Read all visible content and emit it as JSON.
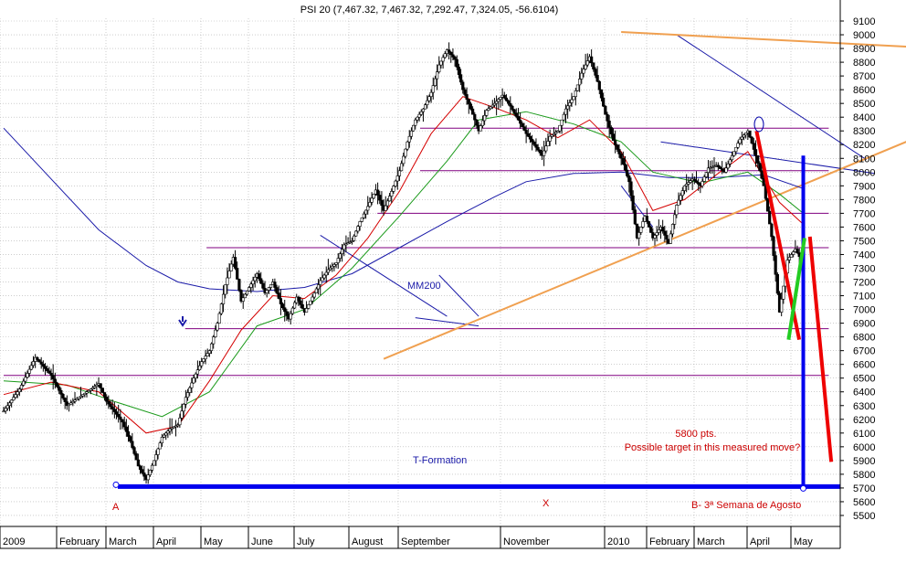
{
  "chart_data": {
    "type": "candlestick",
    "title": "PSI 20 (7,467.32, 7,467.32, 7,292.47, 7,324.05, -56.6104)",
    "ylim": [
      5400,
      9200
    ],
    "y_ticks": [
      5500,
      5600,
      5700,
      5800,
      5900,
      6000,
      6100,
      6200,
      6300,
      6400,
      6500,
      6600,
      6700,
      6800,
      6900,
      7000,
      7100,
      7200,
      7300,
      7400,
      7500,
      7600,
      7700,
      7800,
      7900,
      8000,
      8100,
      8200,
      8300,
      8400,
      8500,
      8600,
      8700,
      8800,
      8900,
      9000,
      9100
    ],
    "x_labels": [
      "2009",
      "February",
      "March",
      "April",
      "May",
      "June",
      "July",
      "August",
      "September",
      "November",
      "2010",
      "February",
      "March",
      "April",
      "May"
    ],
    "grid": true,
    "colors": {
      "candle": "#000000",
      "mm200": "#1a1aa8",
      "ma_red": "#d40000",
      "ma_green": "#1a9a1a",
      "horizontal_level": "#800080",
      "trendline_blue": "#1a1aa8",
      "trendline_orange": "#f0a050",
      "t_formation": "#0000ee",
      "projection_red": "#ee0000",
      "projection_green": "#22cc22",
      "annotation_red": "#cc0000"
    },
    "price_path": [
      [
        0,
        6260
      ],
      [
        2,
        6420
      ],
      [
        4,
        6650
      ],
      [
        6,
        6520
      ],
      [
        8,
        6300
      ],
      [
        10,
        6380
      ],
      [
        12,
        6460
      ],
      [
        13,
        6330
      ],
      [
        15,
        6180
      ],
      [
        16,
        6040
      ],
      [
        17,
        5860
      ],
      [
        18,
        5760
      ],
      [
        19,
        5900
      ],
      [
        20,
        6070
      ],
      [
        21,
        6130
      ],
      [
        22,
        6160
      ],
      [
        23,
        6360
      ],
      [
        24,
        6500
      ],
      [
        25,
        6620
      ],
      [
        26,
        6700
      ],
      [
        27,
        6900
      ],
      [
        28,
        7180
      ],
      [
        29,
        7380
      ],
      [
        30,
        7060
      ],
      [
        31,
        7160
      ],
      [
        32,
        7260
      ],
      [
        33,
        7120
      ],
      [
        34,
        7200
      ],
      [
        35,
        7040
      ],
      [
        36,
        6930
      ],
      [
        37,
        7090
      ],
      [
        38,
        6980
      ],
      [
        39,
        7090
      ],
      [
        40,
        7210
      ],
      [
        41,
        7290
      ],
      [
        42,
        7340
      ],
      [
        43,
        7470
      ],
      [
        44,
        7500
      ],
      [
        45,
        7640
      ],
      [
        46,
        7750
      ],
      [
        47,
        7870
      ],
      [
        48,
        7720
      ],
      [
        49,
        7860
      ],
      [
        50,
        8010
      ],
      [
        51,
        8220
      ],
      [
        52,
        8380
      ],
      [
        53,
        8460
      ],
      [
        54,
        8580
      ],
      [
        55,
        8780
      ],
      [
        56,
        8890
      ],
      [
        57,
        8820
      ],
      [
        58,
        8600
      ],
      [
        59,
        8460
      ],
      [
        60,
        8300
      ],
      [
        61,
        8450
      ],
      [
        62,
        8500
      ],
      [
        63,
        8560
      ],
      [
        64,
        8480
      ],
      [
        65,
        8380
      ],
      [
        66,
        8280
      ],
      [
        67,
        8200
      ],
      [
        68,
        8120
      ],
      [
        69,
        8260
      ],
      [
        70,
        8300
      ],
      [
        71,
        8460
      ],
      [
        72,
        8550
      ],
      [
        73,
        8720
      ],
      [
        74,
        8840
      ],
      [
        75,
        8660
      ],
      [
        76,
        8420
      ],
      [
        77,
        8230
      ],
      [
        78,
        8100
      ],
      [
        79,
        7930
      ],
      [
        80,
        7520
      ],
      [
        81,
        7680
      ],
      [
        82,
        7520
      ],
      [
        83,
        7600
      ],
      [
        84,
        7480
      ],
      [
        85,
        7760
      ],
      [
        86,
        7900
      ],
      [
        87,
        7950
      ],
      [
        88,
        7900
      ],
      [
        89,
        8030
      ],
      [
        90,
        8050
      ],
      [
        91,
        8000
      ],
      [
        92,
        8120
      ],
      [
        93,
        8240
      ],
      [
        94,
        8300
      ],
      [
        95,
        8120
      ],
      [
        96,
        7900
      ],
      [
        97,
        7530
      ],
      [
        98,
        6980
      ],
      [
        99,
        7360
      ],
      [
        100,
        7440
      ],
      [
        101,
        7330
      ]
    ],
    "ma_red_path": [
      [
        0,
        6380
      ],
      [
        6,
        6470
      ],
      [
        12,
        6400
      ],
      [
        18,
        6100
      ],
      [
        22,
        6150
      ],
      [
        26,
        6480
      ],
      [
        30,
        6850
      ],
      [
        34,
        7100
      ],
      [
        38,
        7080
      ],
      [
        42,
        7250
      ],
      [
        46,
        7520
      ],
      [
        50,
        7860
      ],
      [
        54,
        8280
      ],
      [
        58,
        8550
      ],
      [
        62,
        8470
      ],
      [
        66,
        8380
      ],
      [
        70,
        8250
      ],
      [
        74,
        8380
      ],
      [
        78,
        8150
      ],
      [
        82,
        7720
      ],
      [
        86,
        7800
      ],
      [
        90,
        7980
      ],
      [
        94,
        8150
      ],
      [
        98,
        7780
      ],
      [
        101,
        7620
      ]
    ],
    "ma_green_path": [
      [
        0,
        6480
      ],
      [
        8,
        6450
      ],
      [
        14,
        6330
      ],
      [
        20,
        6220
      ],
      [
        26,
        6400
      ],
      [
        32,
        6880
      ],
      [
        38,
        7000
      ],
      [
        44,
        7300
      ],
      [
        50,
        7680
      ],
      [
        56,
        8080
      ],
      [
        60,
        8380
      ],
      [
        66,
        8440
      ],
      [
        72,
        8350
      ],
      [
        78,
        8220
      ],
      [
        82,
        8000
      ],
      [
        88,
        7920
      ],
      [
        94,
        8000
      ],
      [
        98,
        7840
      ],
      [
        101,
        7700
      ]
    ],
    "mm200_path": [
      [
        0,
        8320
      ],
      [
        6,
        7950
      ],
      [
        12,
        7580
      ],
      [
        18,
        7320
      ],
      [
        22,
        7200
      ],
      [
        26,
        7150
      ],
      [
        32,
        7130
      ],
      [
        38,
        7160
      ],
      [
        44,
        7260
      ],
      [
        50,
        7450
      ],
      [
        56,
        7640
      ],
      [
        62,
        7820
      ],
      [
        66,
        7930
      ],
      [
        72,
        7990
      ],
      [
        78,
        8000
      ],
      [
        84,
        7960
      ],
      [
        90,
        7960
      ],
      [
        96,
        7980
      ],
      [
        101,
        7880
      ]
    ],
    "horizontal_levels": [
      {
        "from": 0,
        "to": 101,
        "y": 6520
      },
      {
        "from": 34,
        "to": 101,
        "y": 6860
      },
      {
        "from": 38,
        "to": 101,
        "y": 7450
      },
      {
        "from": 70,
        "to": 101,
        "y": 7700
      },
      {
        "from": 78,
        "to": 101,
        "y": 8010
      },
      {
        "from": 78,
        "to": 101,
        "y": 8320
      }
    ],
    "blue_trendlines": [
      {
        "x1": 40,
        "y1": 7540,
        "x2": 56,
        "y2": 6950
      },
      {
        "x1": 55,
        "y1": 7250,
        "x2": 60,
        "y2": 6950
      },
      {
        "x1": 52,
        "y1": 6940,
        "x2": 60,
        "y2": 6880
      },
      {
        "x1": 78,
        "y1": 7900,
        "x2": 82,
        "y2": 7600
      },
      {
        "x1": 85,
        "y1": 9000,
        "x2": 109,
        "y2": 8090
      },
      {
        "x1": 83,
        "y1": 8220,
        "x2": 110,
        "y2": 7990
      },
      {
        "x1": 116,
        "y1": 7180,
        "x2": 140,
        "y2": 8420
      },
      {
        "x1": 116,
        "y1": 7180,
        "x2": 146,
        "y2": 8620
      }
    ],
    "orange_lines": [
      {
        "x1": 48,
        "y1": 6640,
        "x2": 124,
        "y2": 8460
      },
      {
        "x1": 78,
        "y1": 9020,
        "x2": 122,
        "y2": 8890
      }
    ],
    "t_formation": {
      "base_y": 5710,
      "stem_x": 101,
      "stem_top": 8120
    },
    "red_projection": [
      {
        "x1": 141,
        "y1": 8300,
        "x2": 149,
        "y2": 6780
      },
      {
        "x1": 151,
        "y1": 7530,
        "x2": 155,
        "y2": 5890
      }
    ],
    "green_projection": [
      {
        "x1": 147,
        "y1": 6780,
        "x2": 150,
        "y2": 7520
      }
    ],
    "annotations": {
      "mm200": "MM200",
      "t_formation": "T-Formation",
      "target_line1": "5800 pts.",
      "target_line2": "Possible target  in this measured move?",
      "point_a": "A",
      "point_x": "X",
      "point_b": "B- 3ª Semana de Agosto"
    }
  }
}
